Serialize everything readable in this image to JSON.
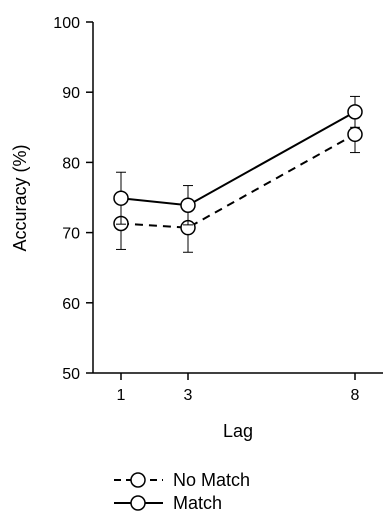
{
  "chart_data": {
    "type": "line",
    "title": "",
    "xlabel": "Lag",
    "ylabel": "Accuracy (%)",
    "x": [
      1,
      3,
      8
    ],
    "x_ticks": [
      "1",
      "3",
      "8"
    ],
    "ylim": [
      50,
      100
    ],
    "y_ticks": [
      "50",
      "60",
      "70",
      "80",
      "90",
      "100"
    ],
    "grid": false,
    "legend_position": "bottom",
    "series": [
      {
        "name": "No Match",
        "values": [
          71.3,
          70.7,
          84.0
        ],
        "error": [
          3.7,
          3.5,
          2.6
        ],
        "line_style": "dashed",
        "color": "#000000"
      },
      {
        "name": "Match",
        "values": [
          74.9,
          73.9,
          87.2
        ],
        "error": [
          3.7,
          2.8,
          2.2
        ],
        "line_style": "solid",
        "color": "#000000"
      }
    ]
  }
}
